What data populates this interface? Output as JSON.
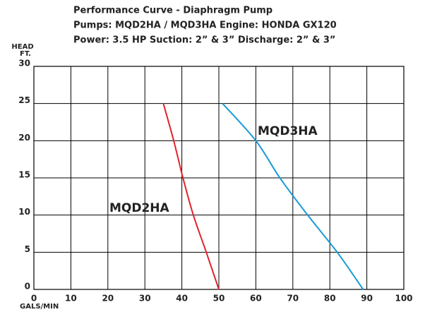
{
  "chart_data": {
    "type": "line",
    "title": [
      "Performance Curve - Diaphragm Pump",
      "Pumps: MQD2HA / MQD3HA Engine: HONDA GX120",
      "Power: 3.5 HP  Suction: 2” & 3”  Discharge: 2” & 3”"
    ],
    "y_label": [
      "HEAD",
      "FT."
    ],
    "x_label": "GALS/MIN",
    "xlim": [
      0,
      100
    ],
    "xticks": [
      0,
      10,
      20,
      30,
      40,
      50,
      60,
      70,
      80,
      90,
      100
    ],
    "ylim": [
      0,
      30
    ],
    "yticks": [
      0,
      5,
      10,
      15,
      20,
      25,
      30
    ],
    "grid": true,
    "series": [
      {
        "name": "MQD2HA",
        "color": "#e0242b",
        "x": [
          35,
          37.8,
          40.3,
          43.1,
          46.6,
          50
        ],
        "values": [
          25,
          20,
          15,
          10,
          5,
          0
        ]
      },
      {
        "name": "MQD3HA",
        "color": "#1a9ad6",
        "x": [
          51,
          60,
          66.5,
          74,
          82,
          89
        ],
        "values": [
          25,
          20,
          15,
          10,
          5,
          0
        ]
      }
    ]
  }
}
